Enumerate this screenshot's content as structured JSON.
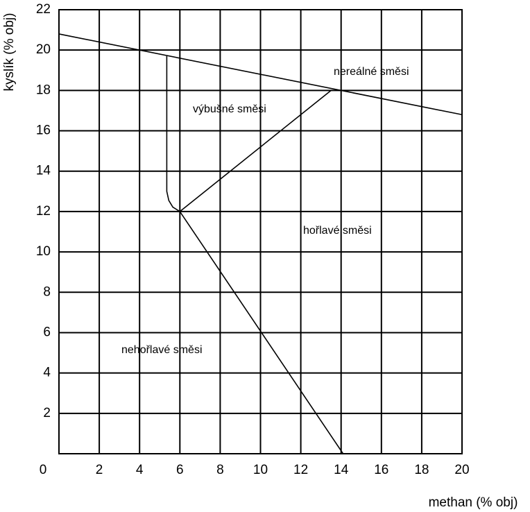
{
  "chart_data": {
    "type": "line",
    "xlabel": "methan (% obj)",
    "ylabel": "kyslík (% obj)",
    "xlim": [
      0,
      20
    ],
    "ylim": [
      0,
      22
    ],
    "xticks": [
      0,
      2,
      4,
      6,
      8,
      10,
      12,
      14,
      16,
      18,
      20
    ],
    "yticks": [
      2,
      4,
      6,
      8,
      10,
      12,
      14,
      16,
      18,
      20,
      22
    ],
    "grid": true,
    "series": [
      {
        "color": "#000000",
        "x": [
          0,
          20
        ],
        "y": [
          20.8,
          16.8
        ]
      },
      {
        "color": "#000000",
        "x": [
          6,
          13.5
        ],
        "y": [
          12,
          18
        ]
      },
      {
        "color": "#000000",
        "x": [
          6,
          14.1
        ],
        "y": [
          12,
          0
        ]
      },
      {
        "color": "#000000",
        "x": [
          5.35,
          5.35,
          5.45,
          5.65,
          6
        ],
        "y": [
          19.7,
          13,
          12.55,
          12.22,
          12
        ]
      }
    ],
    "annotations": [
      "nereálné směsi",
      "výbušné směsi",
      "hořlavé směsi",
      "nehořlavé směsi"
    ]
  }
}
